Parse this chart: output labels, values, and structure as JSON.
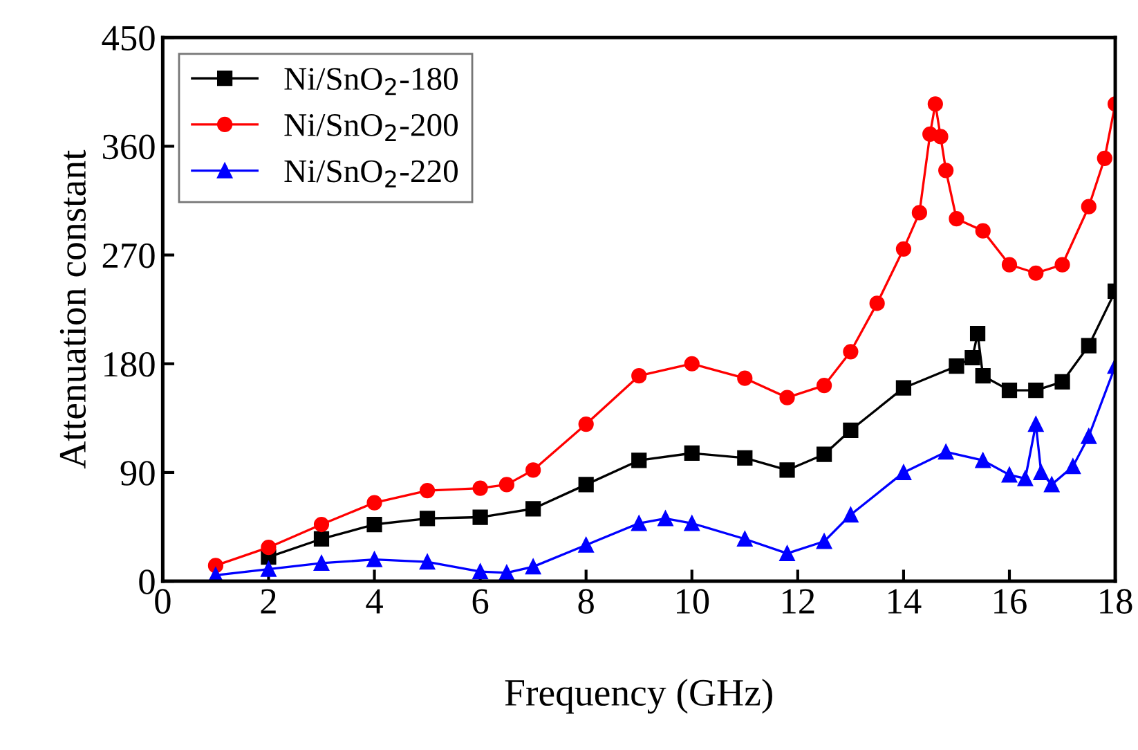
{
  "chart_data": {
    "type": "line",
    "xlabel": "Frequency (GHz)",
    "ylabel": "Attenuation constant",
    "xlim": [
      0,
      18
    ],
    "xticks": [
      0,
      2,
      4,
      6,
      8,
      10,
      12,
      14,
      16,
      18
    ],
    "ylim": [
      0,
      450
    ],
    "yticks": [
      0,
      90,
      180,
      270,
      360,
      450
    ],
    "grid": false,
    "legend": "top left",
    "line_style": "solid",
    "series": [
      {
        "name": "Ni/SnO$_{2}$-180",
        "color": "#000000",
        "marker": "square",
        "x": [
          2,
          3,
          4,
          5,
          6,
          7,
          8,
          9,
          10,
          11,
          11.8,
          12.5,
          13,
          14,
          15,
          15.3,
          15.4,
          15.5,
          16,
          16.5,
          17,
          17.5,
          18
        ],
        "values": [
          20,
          35,
          47,
          52,
          53,
          60,
          80,
          100,
          106,
          102,
          92,
          105,
          125,
          160,
          178,
          185,
          205,
          170,
          158,
          158,
          165,
          195,
          240
        ]
      },
      {
        "name": "Ni/SnO$_{2}$-200",
        "color": "#ff0000",
        "marker": "circle",
        "x": [
          1,
          2,
          3,
          4,
          5,
          6,
          6.5,
          7,
          8,
          9,
          10,
          11,
          11.8,
          12.5,
          13,
          13.5,
          14,
          14.3,
          14.5,
          14.6,
          14.7,
          14.8,
          15,
          15.5,
          16,
          16.5,
          17,
          17.5,
          17.8,
          18
        ],
        "values": [
          13,
          28,
          47,
          65,
          75,
          77,
          80,
          92,
          130,
          170,
          180,
          168,
          152,
          162,
          190,
          230,
          275,
          305,
          370,
          395,
          368,
          340,
          300,
          290,
          262,
          255,
          262,
          310,
          350,
          395
        ]
      },
      {
        "name": "Ni/SnO$_{2}$-220",
        "color": "#0000ff",
        "marker": "triangle",
        "x": [
          1,
          2,
          3,
          4,
          5,
          6,
          6.5,
          7,
          8,
          9,
          9.5,
          10,
          11,
          11.8,
          12.5,
          13,
          14,
          14.8,
          15.5,
          16,
          16.3,
          16.5,
          16.6,
          16.8,
          17.2,
          17.5,
          18
        ],
        "values": [
          5,
          10,
          15,
          18,
          16,
          8,
          7,
          12,
          30,
          48,
          52,
          48,
          35,
          23,
          33,
          55,
          90,
          107,
          100,
          88,
          85,
          130,
          90,
          80,
          95,
          120,
          178
        ]
      }
    ]
  }
}
